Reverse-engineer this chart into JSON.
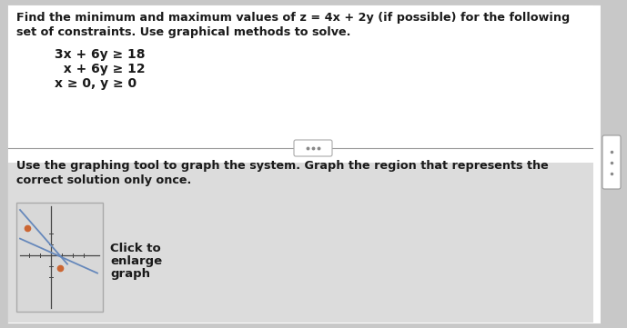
{
  "bg_color": "#c8c8c8",
  "panel_bg": "#ffffff",
  "text_color": "#1a1a1a",
  "title_text_line1": "Find the minimum and maximum values of z = 4x + 2y (if possible) for the following",
  "title_text_line2": "set of constraints. Use graphical methods to solve.",
  "constraint1": "3x + 6y ≥ 18",
  "constraint2": "  x + 6y ≥ 12",
  "constraint3": "x ≥ 0, y ≥ 0",
  "bottom_line1": "Use the graphing tool to graph the system. Graph the region that represents the",
  "bottom_line2": "correct solution only once.",
  "graph_label_line1": "Click to",
  "graph_label_line2": "enlarge",
  "graph_label_line3": "graph",
  "line_color": "#6688bb",
  "dot_color": "#cc6633",
  "scroll_color": "#aaaaaa",
  "divider_color": "#999999",
  "panel_edge_color": "#cccccc",
  "dots_pill_color": "#dddddd"
}
